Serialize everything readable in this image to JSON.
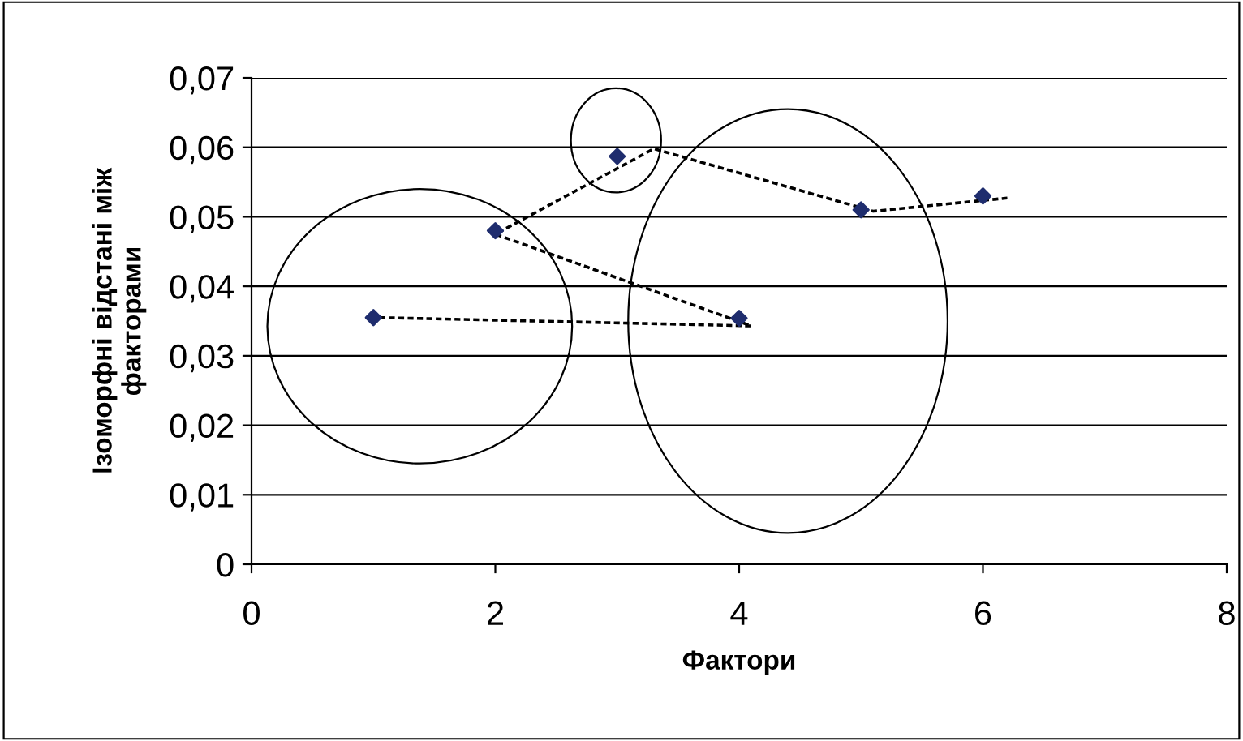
{
  "chart_data": {
    "type": "scatter",
    "xlabel": "Фактори",
    "ylabel": "Ізоморфні відстані між\nфакторами",
    "series": [
      {
        "color": "#1f2d6e",
        "marker": "diamond",
        "x": [
          1,
          2,
          3,
          4,
          5,
          6
        ],
        "values": [
          0.0355,
          0.048,
          0.0587,
          0.0354,
          0.051,
          0.053
        ]
      },
      {
        "type": "line",
        "color": "#000000",
        "line_style": "dashed",
        "marker": "none",
        "x": [
          1.05,
          4.1,
          2.0,
          3.3,
          5.1,
          6.2
        ],
        "values": [
          0.0355,
          0.0343,
          0.0475,
          0.0598,
          0.0508,
          0.0527
        ]
      }
    ],
    "xlim": [
      0,
      8
    ],
    "xticks": [
      0,
      2,
      4,
      6,
      8
    ],
    "ylim": [
      0,
      0.07
    ],
    "yticks": [
      0,
      {
        "value": 0.01,
        "label": "0,01"
      },
      {
        "value": 0.02,
        "label": "0,02"
      },
      {
        "value": 0.03,
        "label": "0,03"
      },
      {
        "value": 0.04,
        "label": "0,04"
      },
      {
        "value": 0.05,
        "label": "0,05"
      },
      {
        "value": 0.06,
        "label": "0,06"
      },
      {
        "value": 0.07,
        "label": "0,07"
      }
    ],
    "grid": "y"
  }
}
